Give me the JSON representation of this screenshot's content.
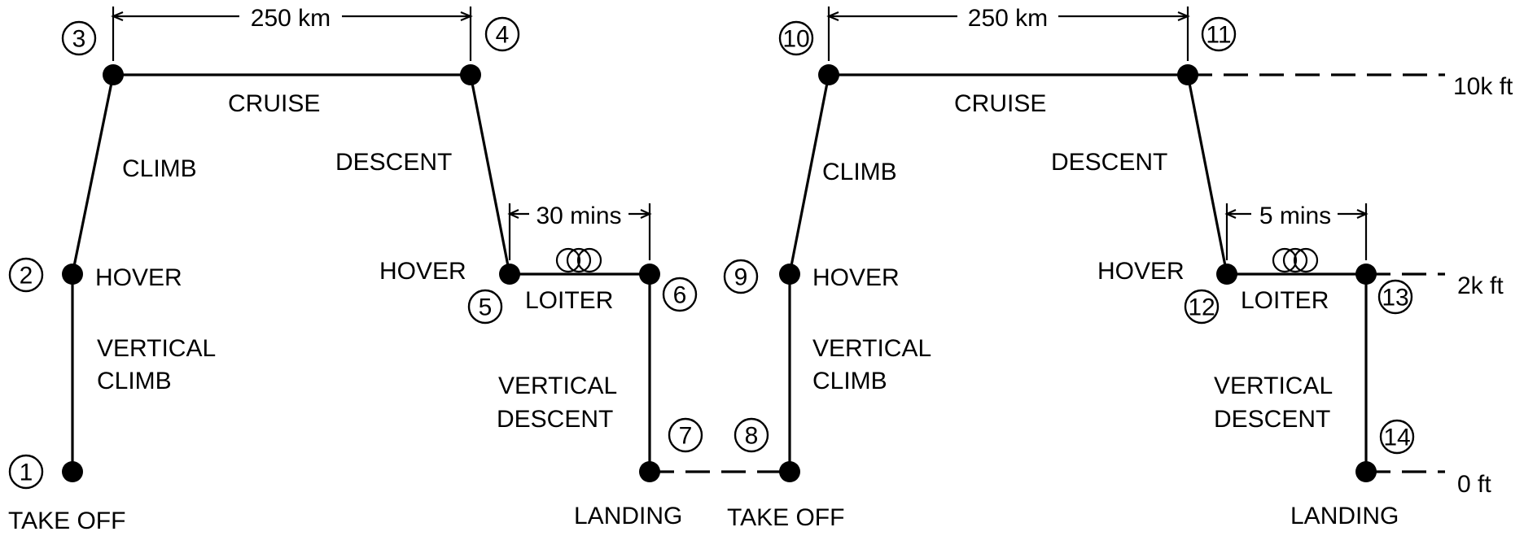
{
  "distances": {
    "cruise_1": "250 km",
    "cruise_2": "250 km"
  },
  "loiter_times": {
    "loiter_1": "30 mins",
    "loiter_2": "5 mins"
  },
  "altitudes": {
    "high": "10k ft",
    "mid": "2k ft",
    "ground": "0 ft"
  },
  "points": [
    "1",
    "2",
    "3",
    "4",
    "5",
    "6",
    "7",
    "8",
    "9",
    "10",
    "11",
    "12",
    "13",
    "14"
  ],
  "segments": {
    "take_off": "TAKE OFF",
    "vertical_climb_1": "VERTICAL",
    "vertical_climb_2": "CLIMB",
    "hover": "HOVER",
    "climb": "CLIMB",
    "cruise": "CRUISE",
    "descent": "DESCENT",
    "loiter": "LOITER",
    "vertical_descent_1": "VERTICAL",
    "vertical_descent_2": "DESCENT",
    "landing": "LANDING"
  }
}
